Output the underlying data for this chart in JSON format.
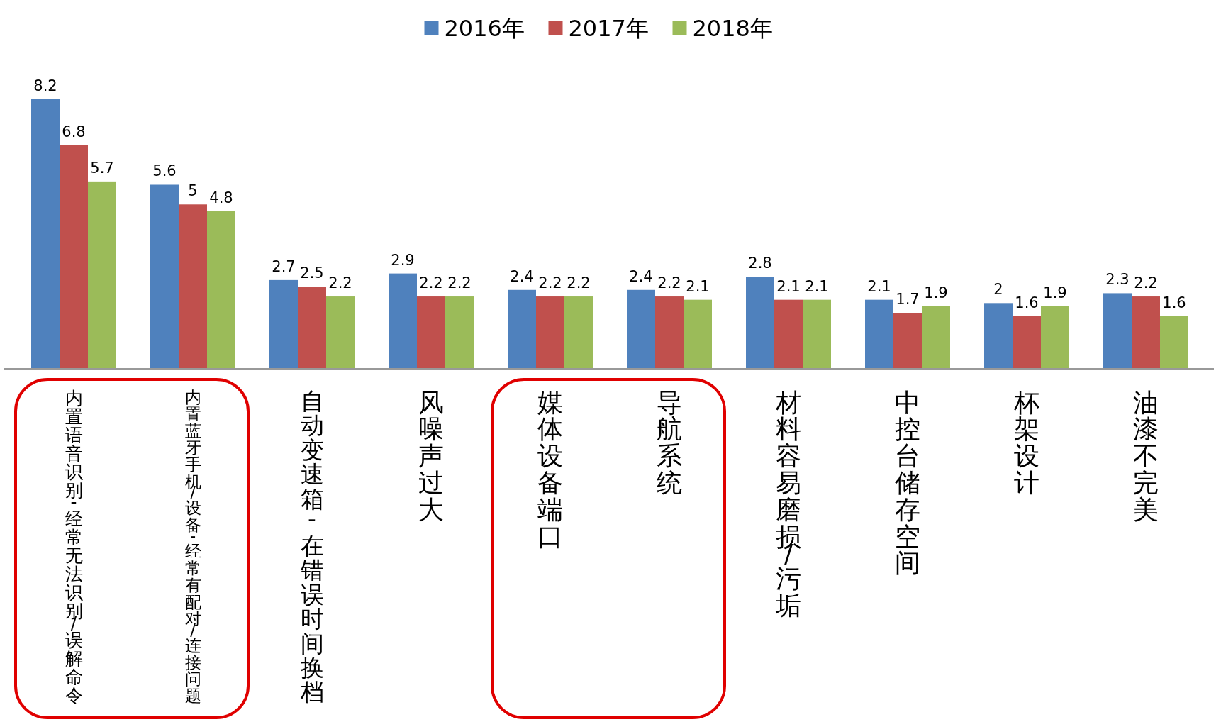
{
  "chart_data": {
    "type": "bar",
    "categories": [
      "内置语音识别-经常无法识别/误解命令",
      "内置蓝牙手机/设备-经常有配对/连接问题",
      "自动变速箱 - 在错误时间换档",
      "风噪声过大",
      "媒体设备端口",
      "导航系统",
      "材料容易磨损/污垢",
      "中控台储存空间",
      "杯架设计",
      "油漆不完美"
    ],
    "series": [
      {
        "name": "2016年",
        "color": "#4f81bd",
        "values": [
          8.2,
          5.6,
          2.7,
          2.9,
          2.4,
          2.4,
          2.8,
          2.1,
          2,
          2.3
        ]
      },
      {
        "name": "2017年",
        "color": "#c0504d",
        "values": [
          6.8,
          5,
          2.5,
          2.2,
          2.2,
          2.2,
          2.1,
          1.7,
          1.6,
          2.2
        ]
      },
      {
        "name": "2018年",
        "color": "#9bbb59",
        "values": [
          5.7,
          4.8,
          2.2,
          2.2,
          2.2,
          2.1,
          2.1,
          1.9,
          1.9,
          1.6
        ]
      }
    ],
    "data_labels": true,
    "legend": "top"
  }
}
